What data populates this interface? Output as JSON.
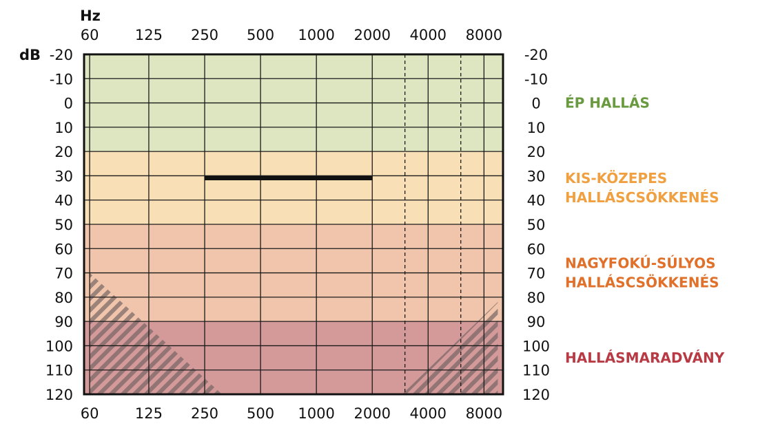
{
  "chart_data": {
    "type": "line",
    "x_unit": "Hz",
    "y_unit": "dB",
    "x": [
      60,
      125,
      250,
      500,
      1000,
      2000,
      4000,
      8000
    ],
    "x_tick_labels": [
      "60",
      "125",
      "250",
      "500",
      "1000",
      "2000",
      "4000",
      "8000"
    ],
    "x_dashed_minor": [
      3000,
      6000
    ],
    "y_ticks": [
      -20,
      -10,
      0,
      10,
      20,
      30,
      40,
      50,
      60,
      70,
      80,
      90,
      100,
      110,
      120
    ],
    "y_tick_labels": [
      "-20",
      "-10",
      "0",
      "10",
      "20",
      "30",
      "40",
      "50",
      "60",
      "70",
      "80",
      "90",
      "100",
      "110",
      "120"
    ],
    "ylim": [
      -20,
      120
    ],
    "y_inverted": true,
    "grid": true,
    "zones": [
      {
        "label_lines": [
          "ÉP HALLÁS"
        ],
        "from": -20,
        "to": 20,
        "fill": "#dde6c1",
        "text_color": "#6a9a3f"
      },
      {
        "label_lines": [
          "KIS-KÖZEPES",
          "HALLÁSCSÖKKENÉS"
        ],
        "from": 20,
        "to": 50,
        "fill": "#f8dfb6",
        "text_color": "#f0a040"
      },
      {
        "label_lines": [
          "NAGYFOKÚ-SÚLYOS",
          "HALLÁSCSÖKKENÉS"
        ],
        "from": 50,
        "to": 90,
        "fill": "#f1c5ab",
        "text_color": "#e0702a"
      },
      {
        "label_lines": [
          "HALLÁSMARADVÁNY"
        ],
        "from": 90,
        "to": 120,
        "fill": "#d49a9a",
        "text_color": "#b83a44"
      }
    ],
    "series": [
      {
        "x": [
          250,
          2000
        ],
        "y": [
          31,
          31
        ],
        "color": "#111111"
      }
    ],
    "hatched_regions": [
      {
        "points": [
          [
            60,
            70
          ],
          [
            310,
            120
          ],
          [
            60,
            120
          ]
        ]
      },
      {
        "points": [
          [
            2900,
            120
          ],
          [
            9500,
            82
          ],
          [
            9500,
            120
          ]
        ]
      }
    ]
  }
}
